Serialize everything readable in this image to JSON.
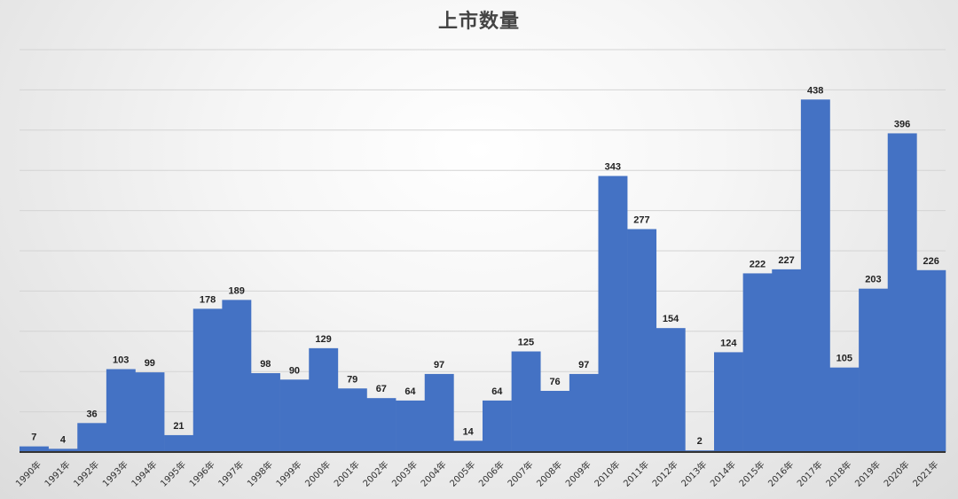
{
  "chart_data": {
    "type": "bar",
    "title": "上市数量",
    "xlabel": "",
    "ylabel": "",
    "ylim": [
      0,
      500
    ],
    "grid": true,
    "bar_color": "#4472c4",
    "categories": [
      "1990年",
      "1991年",
      "1992年",
      "1993年",
      "1994年",
      "1995年",
      "1996年",
      "1997年",
      "1998年",
      "1999年",
      "2000年",
      "2001年",
      "2002年",
      "2003年",
      "2004年",
      "2005年",
      "2006年",
      "2007年",
      "2008年",
      "2009年",
      "2010年",
      "2011年",
      "2012年",
      "2013年",
      "2014年",
      "2015年",
      "2016年",
      "2017年",
      "2018年",
      "2019年",
      "2020年",
      "2021年"
    ],
    "values": [
      7,
      4,
      36,
      103,
      99,
      21,
      178,
      189,
      98,
      90,
      129,
      79,
      67,
      64,
      97,
      14,
      64,
      125,
      76,
      97,
      343,
      277,
      154,
      2,
      124,
      222,
      227,
      438,
      105,
      203,
      396,
      226
    ],
    "data_labels": [
      "7",
      "4",
      "36",
      "103",
      "99",
      "21",
      "178",
      "189",
      "98",
      "90",
      "129",
      "79",
      "67",
      "64",
      "97",
      "14",
      "64",
      "125",
      "76",
      "97",
      "343",
      "277",
      "154",
      "2",
      "124",
      "222",
      "227",
      "438",
      "105",
      "203",
      "396",
      "226"
    ]
  }
}
